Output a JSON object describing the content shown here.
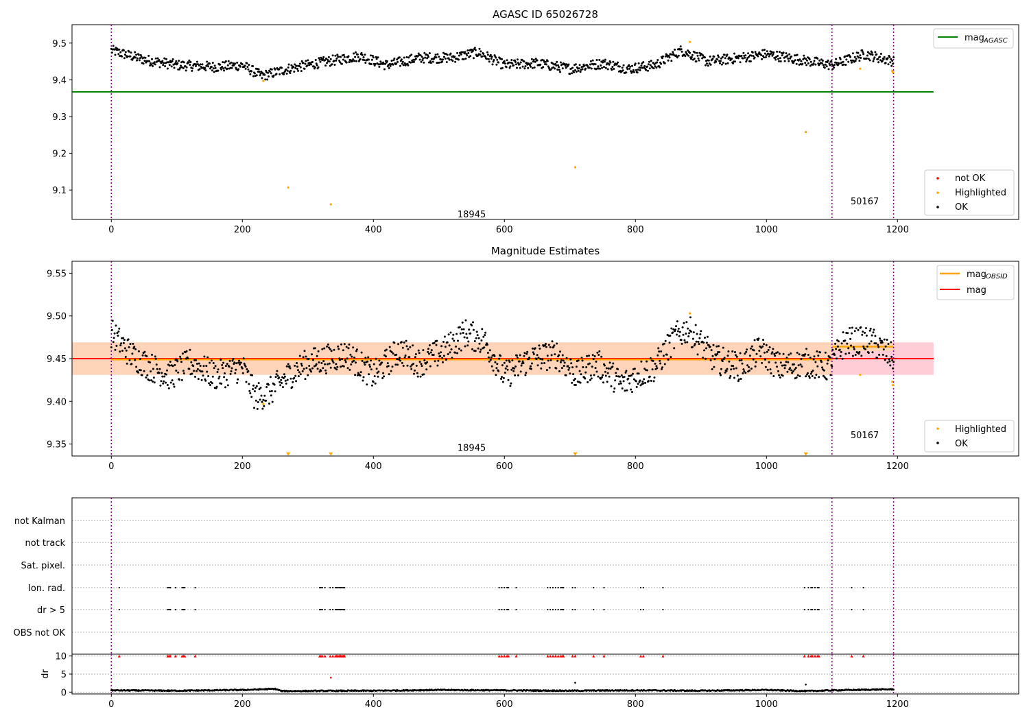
{
  "figure": {
    "panel1_title": "AGASC ID 65026728",
    "panel2_title": "Magnitude Estimates"
  },
  "chart_data": [
    {
      "id": "agasc",
      "type": "scatter",
      "title": "AGASC ID 65026728",
      "xlabel": "",
      "ylabel": "",
      "xlim": [
        -60,
        1385
      ],
      "ylim": [
        9.02,
        9.55
      ],
      "x_ticks": [
        0,
        200,
        400,
        600,
        800,
        1000,
        1200
      ],
      "y_ticks": [
        9.1,
        9.2,
        9.3,
        9.4,
        9.5
      ],
      "grid": false,
      "obsid_boundaries": [
        0,
        1100,
        1194
      ],
      "obsid_labels": [
        {
          "text": "18945",
          "x": 550,
          "y": 9.035
        },
        {
          "text": "50167",
          "x": 1150,
          "y": 9.07
        }
      ],
      "lines": [
        {
          "name": "mag_AGASC",
          "color": "#008000",
          "y": 9.367,
          "x_range": [
            -60,
            1255
          ]
        }
      ],
      "ok_series_segments": [
        {
          "x": [
            0,
            50,
            100,
            160,
            200,
            230,
            270,
            330,
            380,
            420,
            470,
            520,
            560,
            600,
            650,
            700,
            750,
            790,
            830,
            870,
            910,
            960,
            1000,
            1050,
            1100,
            1150,
            1195
          ],
          "y": [
            9.48,
            9.455,
            9.44,
            9.435,
            9.44,
            9.41,
            9.43,
            9.45,
            9.465,
            9.44,
            9.46,
            9.46,
            9.475,
            9.44,
            9.445,
            9.43,
            9.445,
            9.43,
            9.44,
            9.48,
            9.45,
            9.46,
            9.47,
            9.455,
            9.44,
            9.47,
            9.45
          ]
        }
      ],
      "highlighted": [
        {
          "x": 232,
          "y": 9.397
        },
        {
          "x": 270,
          "y": 9.107
        },
        {
          "x": 335,
          "y": 9.061
        },
        {
          "x": 708,
          "y": 9.162
        },
        {
          "x": 883,
          "y": 9.503
        },
        {
          "x": 1060,
          "y": 9.258
        },
        {
          "x": 1143,
          "y": 9.43
        },
        {
          "x": 1192,
          "y": 9.424
        },
        {
          "x": 1193,
          "y": 9.42
        }
      ],
      "legend": [
        {
          "label": "mag",
          "sub": "AGASC",
          "color": "#008000",
          "kind": "line",
          "position": "top-right"
        },
        {
          "label": "not OK",
          "color": "#ff0000",
          "kind": "point",
          "position": "bottom-right"
        },
        {
          "label": "Highlighted",
          "color": "#ffa500",
          "kind": "point",
          "position": "bottom-right"
        },
        {
          "label": "OK",
          "color": "#000000",
          "kind": "point",
          "position": "bottom-right"
        }
      ]
    },
    {
      "id": "estimates",
      "type": "scatter",
      "title": "Magnitude Estimates",
      "xlabel": "",
      "ylabel": "",
      "xlim": [
        -60,
        1385
      ],
      "ylim": [
        9.336,
        9.564
      ],
      "x_ticks": [
        0,
        200,
        400,
        600,
        800,
        1000,
        1200
      ],
      "y_ticks": [
        9.35,
        9.4,
        9.45,
        9.5,
        9.55
      ],
      "grid": false,
      "obsid_boundaries": [
        0,
        1100,
        1194
      ],
      "obsid_labels": [
        {
          "text": "18945",
          "x": 550,
          "y": 9.346
        },
        {
          "text": "50167",
          "x": 1150,
          "y": 9.361
        }
      ],
      "lines": [
        {
          "name": "mag",
          "color": "#ff0000",
          "y": 9.45,
          "x_range": [
            -60,
            1255
          ]
        },
        {
          "name": "mag_OBSID",
          "color": "#ffa500",
          "y": 9.449,
          "x_range": [
            0,
            1100
          ]
        },
        {
          "name": "mag_OBSID",
          "color": "#ffa500",
          "y": 9.464,
          "x_range": [
            1100,
            1194
          ]
        }
      ],
      "bands": [
        {
          "color": "#ffc0cb",
          "y_range": [
            9.431,
            9.469
          ],
          "x_range": [
            -60,
            1255
          ]
        },
        {
          "color": "#ffd6b0",
          "y_range": [
            9.431,
            9.469
          ],
          "x_range": [
            -60,
            1100
          ]
        }
      ],
      "ok_series_segments": [
        {
          "x": [
            0,
            30,
            60,
            90,
            120,
            160,
            200,
            220,
            240,
            270,
            300,
            330,
            360,
            400,
            440,
            470,
            510,
            540,
            570,
            600,
            640,
            680,
            710,
            740,
            780,
            800,
            830,
            860,
            880,
            920,
            960,
            990,
            1020,
            1060,
            1095,
            1120,
            1160,
            1195
          ],
          "y": [
            9.48,
            9.455,
            9.44,
            9.43,
            9.445,
            9.43,
            9.44,
            9.405,
            9.41,
            9.43,
            9.445,
            9.45,
            9.455,
            9.43,
            9.46,
            9.445,
            9.46,
            9.48,
            9.47,
            9.43,
            9.45,
            9.455,
            9.43,
            9.445,
            9.42,
            9.43,
            9.44,
            9.475,
            9.485,
            9.45,
            9.44,
            9.46,
            9.44,
            9.445,
            9.44,
            9.47,
            9.47,
            9.45
          ]
        }
      ],
      "highlighted": [
        {
          "x": 232,
          "y": 9.397
        },
        {
          "x": 883,
          "y": 9.503
        },
        {
          "x": 1143,
          "y": 9.431
        },
        {
          "x": 1192,
          "y": 9.423
        },
        {
          "x": 1193,
          "y": 9.419
        }
      ],
      "out_of_range_markers": [
        {
          "x": 270,
          "y": 9.337
        },
        {
          "x": 335,
          "y": 9.337
        },
        {
          "x": 708,
          "y": 9.337
        },
        {
          "x": 1060,
          "y": 9.337
        }
      ],
      "legend": [
        {
          "label": "mag",
          "sub": "OBSID",
          "color": "#ffa500",
          "kind": "line",
          "position": "top-right"
        },
        {
          "label": "mag",
          "sub": "",
          "color": "#ff0000",
          "kind": "line",
          "position": "top-right"
        },
        {
          "label": "Highlighted",
          "color": "#ffa500",
          "kind": "point",
          "position": "bottom-right"
        },
        {
          "label": "OK",
          "color": "#000000",
          "kind": "point",
          "position": "bottom-right"
        }
      ]
    },
    {
      "id": "flags",
      "type": "scatter",
      "title": "",
      "xlim": [
        -60,
        1385
      ],
      "categories": [
        "not Kalman",
        "not track",
        "Sat. pixel.",
        "Ion. rad.",
        "dr > 5",
        "OBS not OK"
      ],
      "obsid_boundaries": [
        0,
        1100,
        1194
      ],
      "flag_points": {
        "Ion. rad.": [
          12,
          86,
          88,
          90,
          98,
          108,
          110,
          112,
          128,
          318,
          320,
          322,
          326,
          334,
          338,
          342,
          344,
          346,
          348,
          350,
          352,
          354,
          356,
          592,
          596,
          600,
          604,
          606,
          618,
          666,
          670,
          674,
          678,
          682,
          686,
          688,
          690,
          704,
          708,
          736,
          752,
          808,
          812,
          842,
          1058,
          1064,
          1068,
          1070,
          1074,
          1078,
          1080,
          1130,
          1148
        ],
        "dr > 5": [
          12,
          86,
          88,
          90,
          98,
          108,
          110,
          112,
          128,
          318,
          320,
          322,
          326,
          334,
          338,
          342,
          344,
          346,
          348,
          350,
          352,
          354,
          356,
          592,
          596,
          600,
          604,
          606,
          618,
          666,
          670,
          674,
          678,
          682,
          686,
          688,
          690,
          704,
          708,
          736,
          752,
          808,
          812,
          842,
          1058,
          1064,
          1068,
          1070,
          1074,
          1078,
          1080,
          1130,
          1148
        ]
      }
    },
    {
      "id": "dr",
      "type": "scatter",
      "title": "",
      "xlabel": "",
      "ylabel": "dr",
      "xlim": [
        -60,
        1385
      ],
      "ylim": [
        -0.5,
        10.5
      ],
      "x_ticks": [
        0,
        200,
        400,
        600,
        800,
        1000,
        1200
      ],
      "y_ticks": [
        0,
        5,
        10
      ],
      "grid": true,
      "obsid_boundaries": [
        0,
        1100,
        1194
      ],
      "baseline": {
        "x": [
          0,
          100,
          200,
          250,
          260,
          400,
          500,
          600,
          700,
          800,
          900,
          1000,
          1060,
          1100,
          1194
        ],
        "y": [
          0.5,
          0.4,
          0.6,
          0.9,
          0.3,
          0.4,
          0.6,
          0.5,
          0.4,
          0.5,
          0.4,
          0.6,
          0.3,
          0.5,
          0.8
        ]
      },
      "outliers": [
        {
          "x": 335,
          "y": 4.0,
          "color": "#ff0000"
        },
        {
          "x": 708,
          "y": 2.6,
          "color": "#000000"
        },
        {
          "x": 1060,
          "y": 2.1,
          "color": "#000000"
        }
      ],
      "clipped_markers_color": "#ff0000"
    }
  ]
}
